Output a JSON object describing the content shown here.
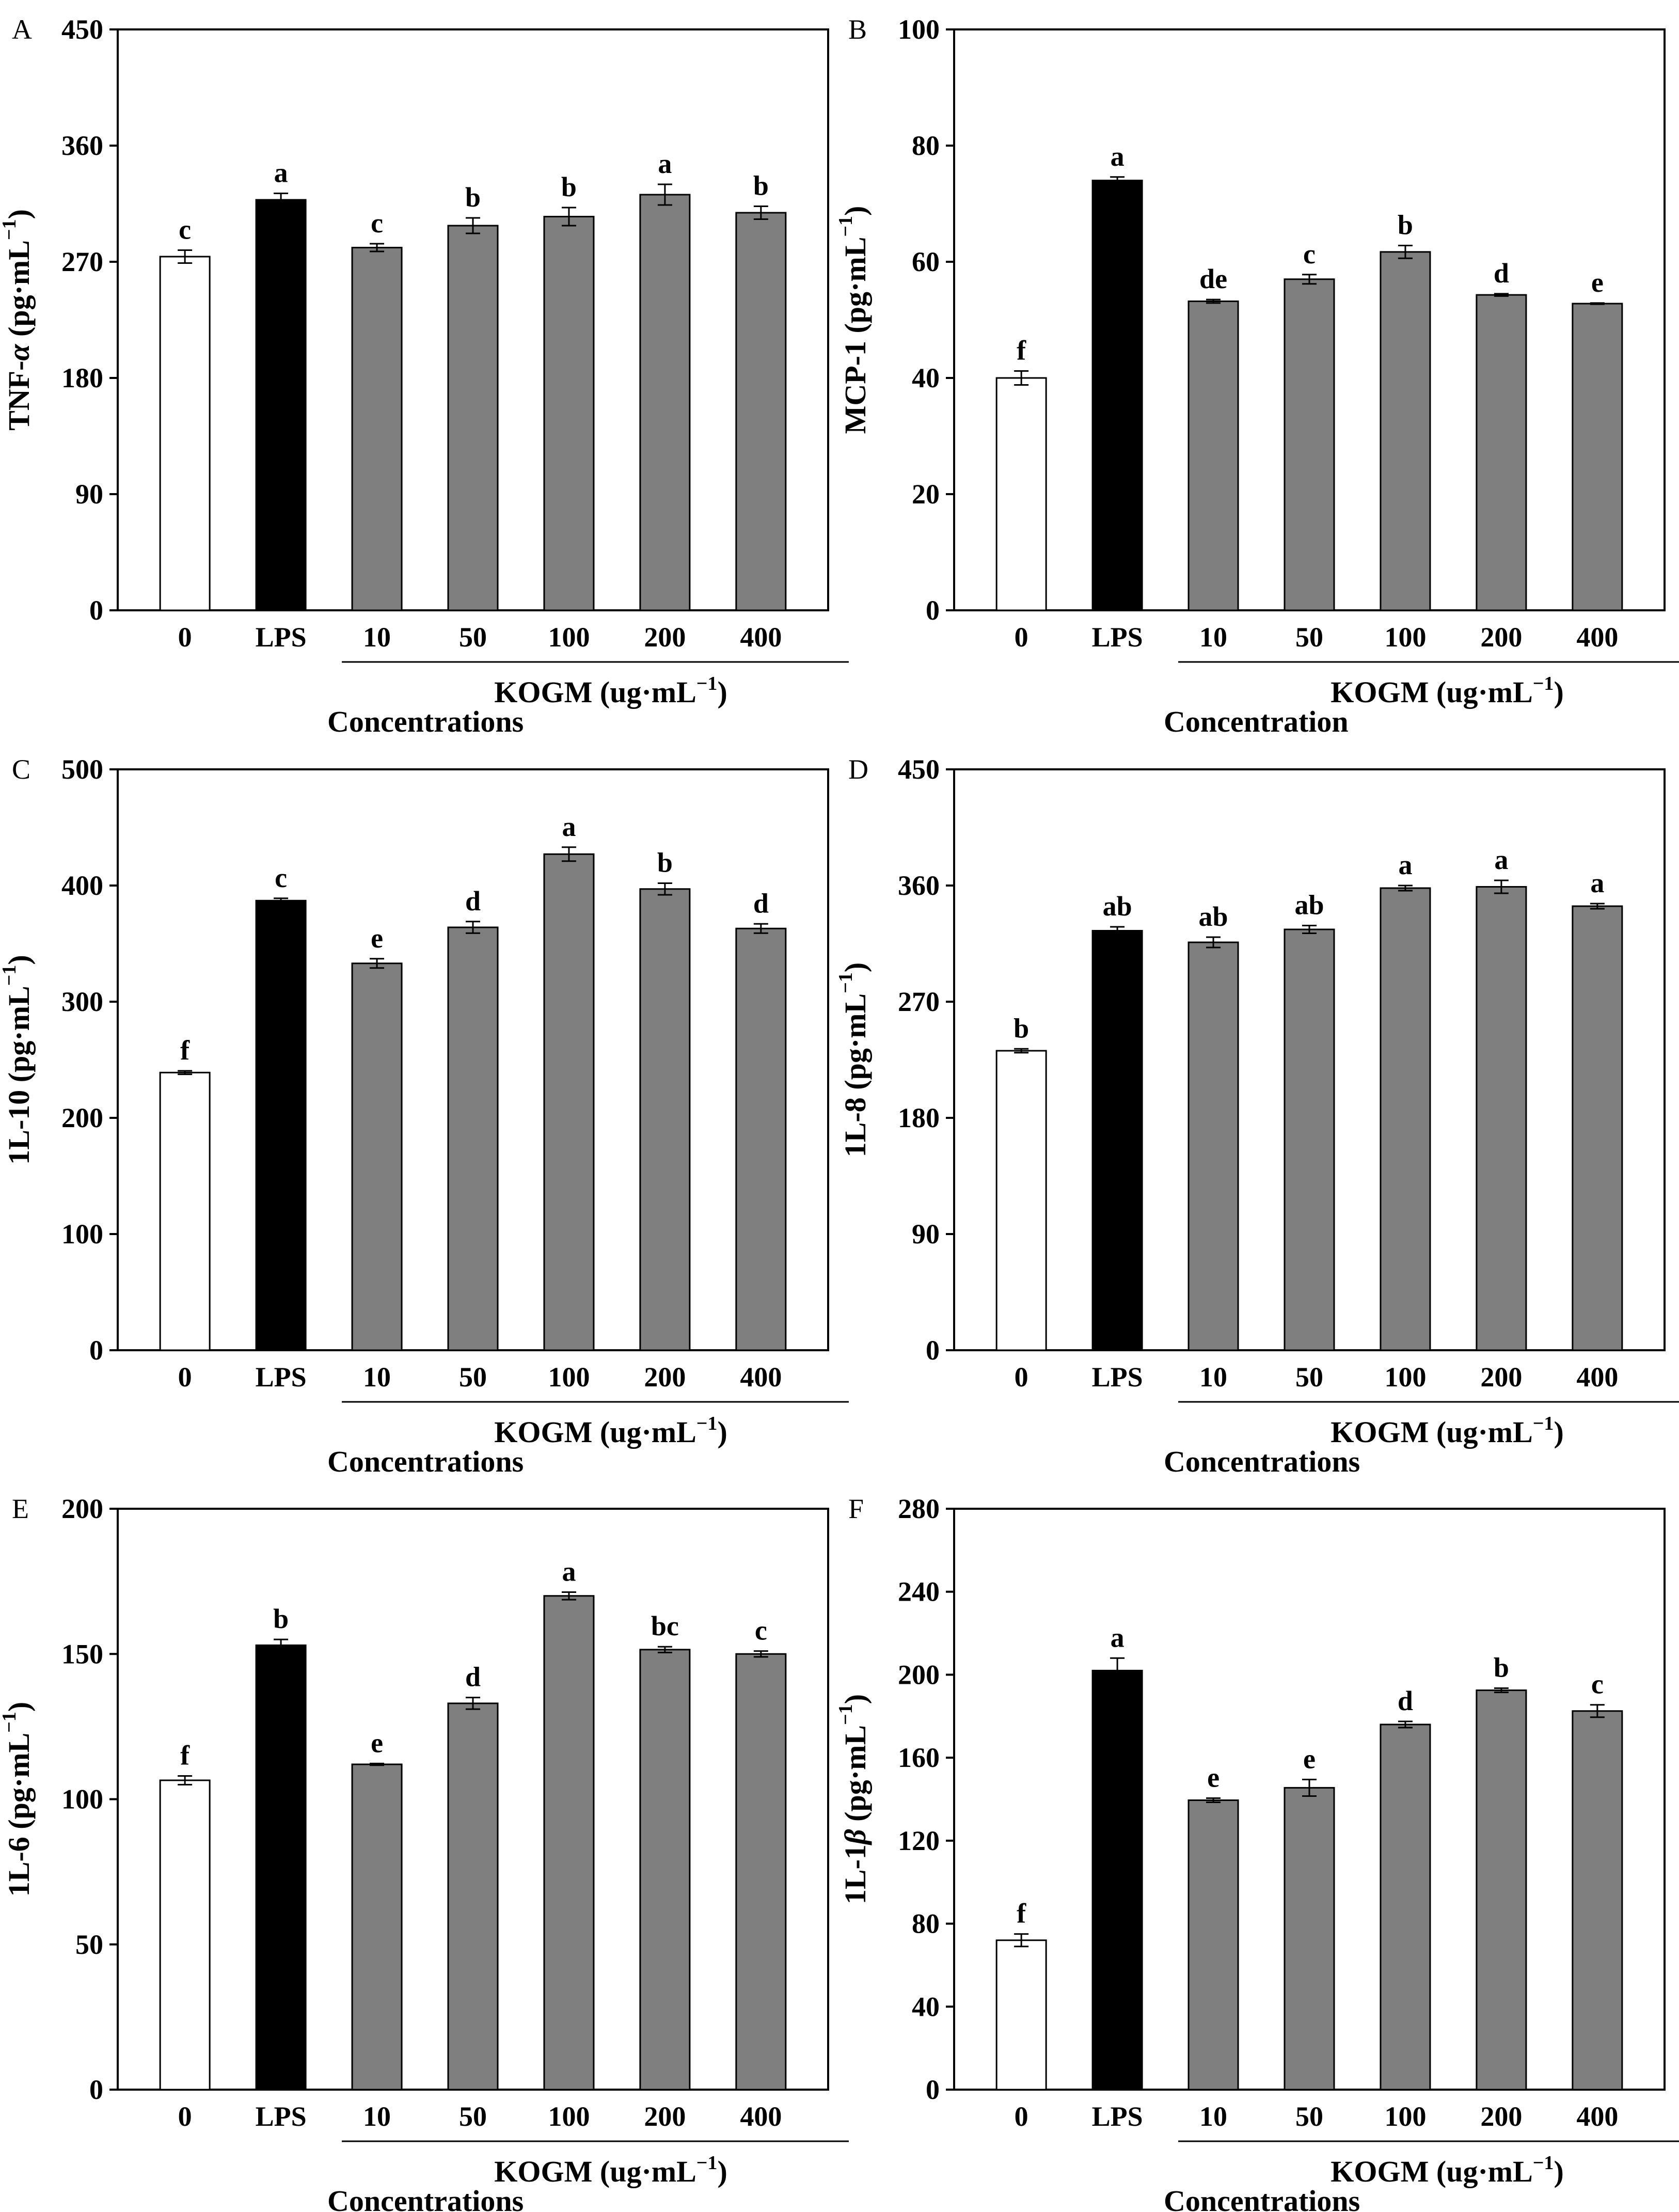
{
  "figure": {
    "group_label_part1": "KOGM (ug·mL",
    "group_label_sup": "−1",
    "group_label_part2": ")",
    "unit_part1": " (pg·mL",
    "unit_sup": "−1",
    "unit_part2": ")"
  },
  "colors": {
    "control_fill": "#ffffff",
    "lps_fill": "#000000",
    "kogm_fill": "#7f7f7f",
    "outline": "#000000"
  },
  "chart_data": [
    {
      "panel": "A",
      "type": "bar",
      "ylabel_prefix": "TNF-",
      "ylabel_greek": "α",
      "ylabel_suffix": "",
      "categories": [
        "0",
        "LPS",
        "10",
        "50",
        "100",
        "200",
        "400"
      ],
      "values": [
        274,
        318,
        281,
        298,
        305,
        322,
        308
      ],
      "errors": [
        5,
        5,
        3,
        6,
        7,
        8,
        5
      ],
      "sig": [
        "c",
        "a",
        "c",
        "b",
        "b",
        "a",
        "b"
      ],
      "ylim": [
        0,
        450
      ],
      "yticks": [
        0,
        90,
        180,
        270,
        360,
        450
      ],
      "xlabel": "Concentrations"
    },
    {
      "panel": "B",
      "type": "bar",
      "ylabel_prefix": "MCP-1",
      "ylabel_greek": "",
      "ylabel_suffix": "",
      "categories": [
        "0",
        "LPS",
        "10",
        "50",
        "100",
        "200",
        "400"
      ],
      "values": [
        40,
        74,
        53.2,
        57,
        61.7,
        54.3,
        52.8
      ],
      "errors": [
        1.2,
        0.6,
        0.3,
        0.8,
        1.1,
        0.2,
        0.1
      ],
      "sig": [
        "f",
        "a",
        "de",
        "c",
        "b",
        "d",
        "e"
      ],
      "ylim": [
        0,
        100
      ],
      "yticks": [
        0,
        20,
        40,
        60,
        80,
        100
      ],
      "xlabel": "Concentration"
    },
    {
      "panel": "C",
      "type": "bar",
      "ylabel_prefix": "1L-10",
      "ylabel_greek": "",
      "ylabel_suffix": "",
      "categories": [
        "0",
        "LPS",
        "10",
        "50",
        "100",
        "200",
        "400"
      ],
      "values": [
        239,
        387,
        333,
        364,
        427,
        397,
        363
      ],
      "errors": [
        1.5,
        2,
        4,
        5,
        6,
        5,
        4
      ],
      "sig": [
        "f",
        "c",
        "e",
        "d",
        "a",
        "b",
        "d"
      ],
      "ylim": [
        0,
        500
      ],
      "yticks": [
        0,
        100,
        200,
        300,
        400,
        500
      ],
      "xlabel": "Concentrations"
    },
    {
      "panel": "D",
      "type": "bar",
      "ylabel_prefix": "1L-8",
      "ylabel_greek": "",
      "ylabel_suffix": "",
      "categories": [
        "0",
        "LPS",
        "10",
        "50",
        "100",
        "200",
        "400"
      ],
      "values": [
        232,
        325,
        316,
        326,
        358,
        359,
        344
      ],
      "errors": [
        1.5,
        3,
        4,
        3,
        2,
        5,
        2
      ],
      "sig": [
        "b",
        "ab",
        "ab",
        "ab",
        "a",
        "a",
        "a"
      ],
      "ylim": [
        0,
        450
      ],
      "yticks": [
        0,
        90,
        180,
        270,
        360,
        450
      ],
      "xlabel": "Concentrations"
    },
    {
      "panel": "E",
      "type": "bar",
      "ylabel_prefix": "1L-6",
      "ylabel_greek": "",
      "ylabel_suffix": "",
      "categories": [
        "0",
        "LPS",
        "10",
        "50",
        "100",
        "200",
        "400"
      ],
      "values": [
        106.5,
        153,
        112,
        133,
        170,
        151.5,
        150
      ],
      "errors": [
        1.5,
        2,
        0.3,
        2,
        1.3,
        1,
        1
      ],
      "sig": [
        "f",
        "b",
        "e",
        "d",
        "a",
        "bc",
        "c"
      ],
      "ylim": [
        0,
        200
      ],
      "yticks": [
        0,
        50,
        100,
        150,
        200
      ],
      "xlabel": "Concentrations"
    },
    {
      "panel": "F",
      "type": "bar",
      "ylabel_prefix": "1L-1",
      "ylabel_greek": "β",
      "ylabel_suffix": "",
      "categories": [
        "0",
        "LPS",
        "10",
        "50",
        "100",
        "200",
        "400"
      ],
      "values": [
        72,
        202,
        139.5,
        145.5,
        176,
        192.5,
        182.5
      ],
      "errors": [
        3,
        6,
        1,
        4,
        1.5,
        1,
        3
      ],
      "sig": [
        "f",
        "a",
        "e",
        "e",
        "d",
        "b",
        "c"
      ],
      "ylim": [
        0,
        280
      ],
      "yticks": [
        0,
        40,
        80,
        120,
        160,
        200,
        240,
        280
      ],
      "xlabel": "Concentrations"
    }
  ]
}
